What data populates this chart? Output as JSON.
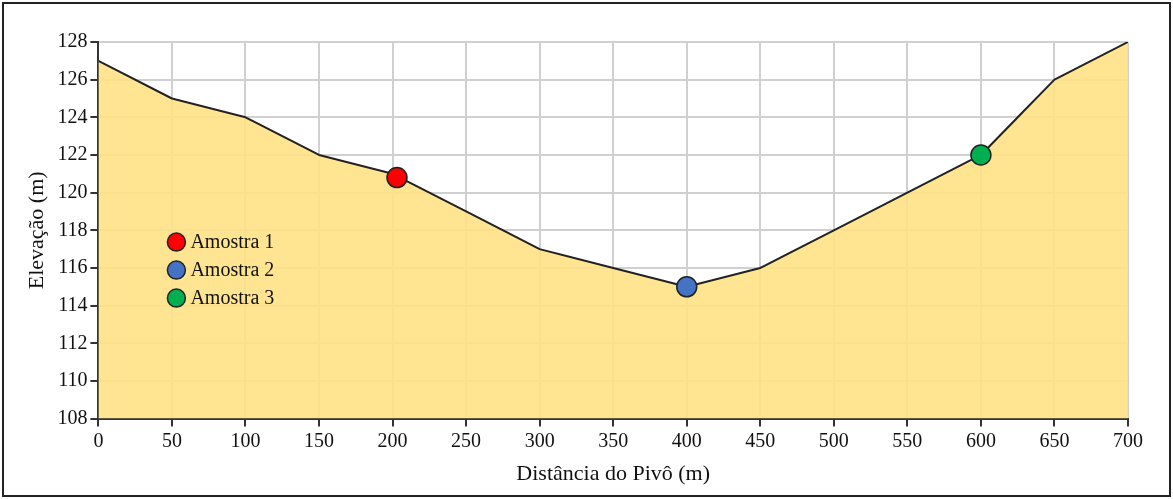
{
  "chart_data": {
    "type": "area",
    "xlabel": "Distância do Pivô (m)",
    "ylabel": "Elevação (m)",
    "x": [
      0,
      50,
      100,
      150,
      200,
      250,
      300,
      350,
      400,
      450,
      500,
      550,
      600,
      650,
      700
    ],
    "series": [
      {
        "color": "#ffe083",
        "values": [
          127,
          125,
          124,
          122,
          121,
          119,
          117,
          116,
          115,
          116,
          118,
          120,
          122,
          126,
          128
        ]
      },
      {
        "type": "scatter",
        "name": "Amostra 1",
        "color": "#ff0000",
        "marker": "circle",
        "x": [
          203
        ],
        "values": [
          120.8
        ]
      },
      {
        "type": "scatter",
        "name": "Amostra 2",
        "color": "#4472c4",
        "marker": "circle",
        "x": [
          400
        ],
        "values": [
          115
        ]
      },
      {
        "type": "scatter",
        "name": "Amostra 3",
        "color": "#00b050",
        "marker": "circle",
        "x": [
          600
        ],
        "values": [
          122
        ]
      }
    ],
    "xlim": [
      0,
      700
    ],
    "xticks": [
      0,
      50,
      100,
      150,
      200,
      250,
      300,
      350,
      400,
      450,
      500,
      550,
      600,
      650,
      700
    ],
    "ylim": [
      108,
      128
    ],
    "yticks": [
      108,
      110,
      112,
      114,
      116,
      118,
      120,
      122,
      124,
      126,
      128
    ],
    "grid": true,
    "legend": "bottom left"
  }
}
